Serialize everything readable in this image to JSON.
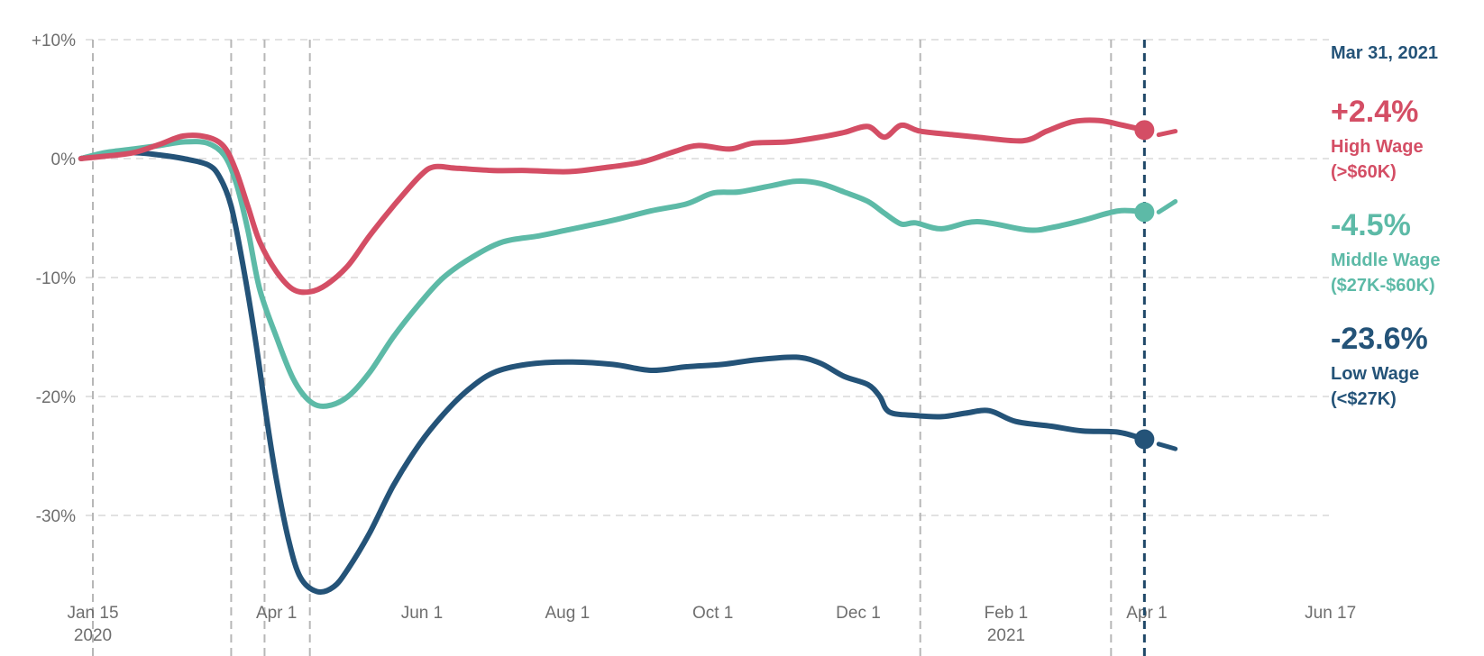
{
  "chart_data": {
    "type": "line",
    "title": "",
    "xlabel": "",
    "ylabel": "",
    "x_axis": {
      "start": "2020-01-10",
      "end": "2021-06-17",
      "ticks": [
        {
          "date": "2020-01-15",
          "label": "Jan 15",
          "sublabel": "2020"
        },
        {
          "date": "2020-04-01",
          "label": "Apr 1",
          "sublabel": ""
        },
        {
          "date": "2020-06-01",
          "label": "Jun 1",
          "sublabel": ""
        },
        {
          "date": "2020-08-01",
          "label": "Aug 1",
          "sublabel": ""
        },
        {
          "date": "2020-10-01",
          "label": "Oct 1",
          "sublabel": ""
        },
        {
          "date": "2020-12-01",
          "label": "Dec 1",
          "sublabel": ""
        },
        {
          "date": "2021-02-01",
          "label": "Feb 1",
          "sublabel": "2021"
        },
        {
          "date": "2021-04-01",
          "label": "Apr 1",
          "sublabel": ""
        },
        {
          "date": "2021-06-17",
          "label": "Jun 17",
          "sublabel": ""
        }
      ]
    },
    "y_axis": {
      "ylim": [
        -37,
        10
      ],
      "ticks": [
        {
          "value": 10,
          "label": "+10%"
        },
        {
          "value": 0,
          "label": "0%"
        },
        {
          "value": -10,
          "label": "-10%"
        },
        {
          "value": -20,
          "label": "-20%"
        },
        {
          "value": -30,
          "label": "-30%"
        }
      ]
    },
    "event_lines": [
      "2020-03-13",
      "2020-03-27",
      "2020-04-15",
      "2020-12-27",
      "2021-03-17"
    ],
    "current_date_line": "2021-03-31",
    "series": [
      {
        "key": "high",
        "name": "High Wage (>$60K)",
        "color": "#d44e65",
        "last_value": 2.4,
        "points": [
          [
            "2020-01-10",
            0
          ],
          [
            "2020-01-20",
            0.2
          ],
          [
            "2020-02-01",
            0.5
          ],
          [
            "2020-02-12",
            1.2
          ],
          [
            "2020-02-22",
            1.9
          ],
          [
            "2020-03-03",
            1.8
          ],
          [
            "2020-03-10",
            1.0
          ],
          [
            "2020-03-15",
            -1.0
          ],
          [
            "2020-03-20",
            -4.0
          ],
          [
            "2020-03-25",
            -7.0
          ],
          [
            "2020-04-01",
            -9.5
          ],
          [
            "2020-04-08",
            -11.0
          ],
          [
            "2020-04-15",
            -11.2
          ],
          [
            "2020-04-22",
            -10.6
          ],
          [
            "2020-05-01",
            -9.0
          ],
          [
            "2020-05-10",
            -6.5
          ],
          [
            "2020-05-20",
            -4.0
          ],
          [
            "2020-05-31",
            -1.5
          ],
          [
            "2020-06-06",
            -0.7
          ],
          [
            "2020-06-15",
            -0.8
          ],
          [
            "2020-07-01",
            -1.0
          ],
          [
            "2020-07-15",
            -1.0
          ],
          [
            "2020-08-01",
            -1.1
          ],
          [
            "2020-08-15",
            -0.8
          ],
          [
            "2020-09-01",
            -0.3
          ],
          [
            "2020-09-15",
            0.6
          ],
          [
            "2020-09-25",
            1.1
          ],
          [
            "2020-10-08",
            0.8
          ],
          [
            "2020-10-18",
            1.3
          ],
          [
            "2020-11-01",
            1.4
          ],
          [
            "2020-11-15",
            1.8
          ],
          [
            "2020-11-25",
            2.2
          ],
          [
            "2020-12-05",
            2.7
          ],
          [
            "2020-12-12",
            1.8
          ],
          [
            "2020-12-19",
            2.8
          ],
          [
            "2020-12-27",
            2.3
          ],
          [
            "2021-01-10",
            2.0
          ],
          [
            "2021-01-20",
            1.8
          ],
          [
            "2021-02-08",
            1.5
          ],
          [
            "2021-02-18",
            2.3
          ],
          [
            "2021-03-01",
            3.1
          ],
          [
            "2021-03-12",
            3.2
          ],
          [
            "2021-03-22",
            2.8
          ],
          [
            "2021-03-31",
            2.4
          ]
        ],
        "tail": [
          [
            "2021-04-06",
            2.0
          ],
          [
            "2021-04-13",
            2.3
          ]
        ]
      },
      {
        "key": "middle",
        "name": "Middle Wage ($27K-$60K)",
        "color": "#5dbaa7",
        "last_value": -4.5,
        "points": [
          [
            "2020-01-10",
            0
          ],
          [
            "2020-01-20",
            0.5
          ],
          [
            "2020-02-01",
            0.8
          ],
          [
            "2020-02-12",
            1.1
          ],
          [
            "2020-02-22",
            1.4
          ],
          [
            "2020-03-03",
            1.3
          ],
          [
            "2020-03-10",
            0.3
          ],
          [
            "2020-03-15",
            -2.0
          ],
          [
            "2020-03-20",
            -6.0
          ],
          [
            "2020-03-25",
            -11.0
          ],
          [
            "2020-04-01",
            -15.0
          ],
          [
            "2020-04-08",
            -18.5
          ],
          [
            "2020-04-15",
            -20.4
          ],
          [
            "2020-04-22",
            -20.8
          ],
          [
            "2020-05-01",
            -20.0
          ],
          [
            "2020-05-10",
            -18.0
          ],
          [
            "2020-05-20",
            -15.0
          ],
          [
            "2020-05-31",
            -12.2
          ],
          [
            "2020-06-10",
            -10.0
          ],
          [
            "2020-06-22",
            -8.3
          ],
          [
            "2020-07-05",
            -7.0
          ],
          [
            "2020-07-20",
            -6.5
          ],
          [
            "2020-08-01",
            -6.0
          ],
          [
            "2020-08-20",
            -5.2
          ],
          [
            "2020-09-05",
            -4.4
          ],
          [
            "2020-09-20",
            -3.8
          ],
          [
            "2020-10-01",
            -2.9
          ],
          [
            "2020-10-12",
            -2.8
          ],
          [
            "2020-10-25",
            -2.3
          ],
          [
            "2020-11-05",
            -1.9
          ],
          [
            "2020-11-15",
            -2.1
          ],
          [
            "2020-11-25",
            -2.8
          ],
          [
            "2020-12-05",
            -3.6
          ],
          [
            "2020-12-12",
            -4.6
          ],
          [
            "2020-12-19",
            -5.5
          ],
          [
            "2020-12-25",
            -5.4
          ],
          [
            "2021-01-05",
            -5.9
          ],
          [
            "2021-01-20",
            -5.3
          ],
          [
            "2021-02-10",
            -6.0
          ],
          [
            "2021-02-20",
            -5.8
          ],
          [
            "2021-03-05",
            -5.2
          ],
          [
            "2021-03-20",
            -4.4
          ],
          [
            "2021-03-31",
            -4.5
          ]
        ],
        "tail": [
          [
            "2021-04-06",
            -4.5
          ],
          [
            "2021-04-13",
            -3.6
          ]
        ]
      },
      {
        "key": "low",
        "name": "Low Wage (<$27K)",
        "color": "#245378",
        "last_value": -23.6,
        "points": [
          [
            "2020-01-10",
            0
          ],
          [
            "2020-01-20",
            0.4
          ],
          [
            "2020-02-01",
            0.5
          ],
          [
            "2020-02-12",
            0.3
          ],
          [
            "2020-02-22",
            0.0
          ],
          [
            "2020-03-03",
            -0.5
          ],
          [
            "2020-03-08",
            -1.5
          ],
          [
            "2020-03-13",
            -4.0
          ],
          [
            "2020-03-18",
            -9.0
          ],
          [
            "2020-03-23",
            -15.0
          ],
          [
            "2020-03-28",
            -22.0
          ],
          [
            "2020-04-01",
            -27.0
          ],
          [
            "2020-04-06",
            -32.0
          ],
          [
            "2020-04-11",
            -35.2
          ],
          [
            "2020-04-18",
            -36.4
          ],
          [
            "2020-04-25",
            -36.0
          ],
          [
            "2020-05-01",
            -34.5
          ],
          [
            "2020-05-10",
            -31.5
          ],
          [
            "2020-05-20",
            -27.5
          ],
          [
            "2020-05-31",
            -24.0
          ],
          [
            "2020-06-10",
            -21.5
          ],
          [
            "2020-06-20",
            -19.5
          ],
          [
            "2020-07-01",
            -18.0
          ],
          [
            "2020-07-15",
            -17.3
          ],
          [
            "2020-08-01",
            -17.1
          ],
          [
            "2020-08-20",
            -17.3
          ],
          [
            "2020-09-05",
            -17.8
          ],
          [
            "2020-09-20",
            -17.5
          ],
          [
            "2020-10-05",
            -17.3
          ],
          [
            "2020-10-20",
            -16.9
          ],
          [
            "2020-11-05",
            -16.7
          ],
          [
            "2020-11-15",
            -17.2
          ],
          [
            "2020-11-25",
            -18.3
          ],
          [
            "2020-12-05",
            -19.0
          ],
          [
            "2020-12-10",
            -20.0
          ],
          [
            "2020-12-14",
            -21.3
          ],
          [
            "2020-12-25",
            -21.6
          ],
          [
            "2021-01-05",
            -21.7
          ],
          [
            "2021-01-15",
            -21.4
          ],
          [
            "2021-01-25",
            -21.2
          ],
          [
            "2021-02-05",
            -22.1
          ],
          [
            "2021-02-20",
            -22.5
          ],
          [
            "2021-03-05",
            -22.9
          ],
          [
            "2021-03-20",
            -23.0
          ],
          [
            "2021-03-31",
            -23.6
          ]
        ],
        "tail": [
          [
            "2021-04-06",
            -24.0
          ],
          [
            "2021-04-13",
            -24.4
          ]
        ]
      }
    ]
  },
  "legend": {
    "date": "Mar 31, 2021",
    "date_color": "#245378",
    "items": [
      {
        "value": "+2.4%",
        "name": "High Wage",
        "range": "(>$60K)",
        "color": "#d44e65"
      },
      {
        "value": "-4.5%",
        "name": "Middle Wage",
        "range": "($27K-$60K)",
        "color": "#5dbaa7"
      },
      {
        "value": "-23.6%",
        "name": "Low Wage",
        "range": "(<$27K)",
        "color": "#245378"
      }
    ]
  }
}
